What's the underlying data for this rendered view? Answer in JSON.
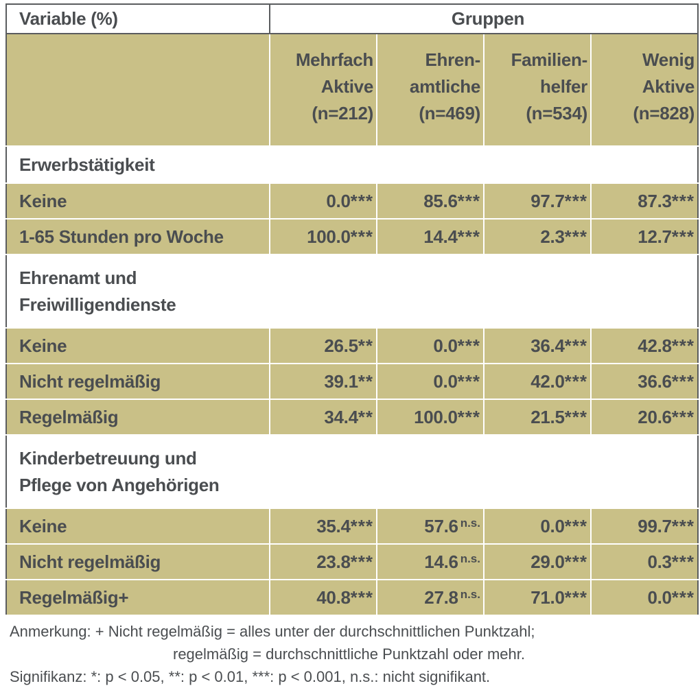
{
  "table": {
    "variable_header": "Variable (%)",
    "groups_header": "Gruppen",
    "columns": [
      {
        "line1": "Mehrfach",
        "line2": "Aktive",
        "n": "(n=212)"
      },
      {
        "line1": "Ehren-",
        "line2": "amtliche",
        "n": "(n=469)"
      },
      {
        "line1": "Familien-",
        "line2": "helfer",
        "n": "(n=534)"
      },
      {
        "line1": "Wenig",
        "line2": "Aktive",
        "n": "(n=828)"
      }
    ],
    "sections": [
      {
        "title": "Erwerbstätigkeit",
        "rows": [
          {
            "label": "Keine",
            "cells": [
              {
                "v": "0.0",
                "s": "***"
              },
              {
                "v": "85.6",
                "s": "***"
              },
              {
                "v": "97.7",
                "s": "***"
              },
              {
                "v": "87.3",
                "s": "***"
              }
            ]
          },
          {
            "label": "1-65 Stunden pro Woche",
            "cells": [
              {
                "v": "100.0",
                "s": "***"
              },
              {
                "v": "14.4",
                "s": "***"
              },
              {
                "v": "2.3",
                "s": "***"
              },
              {
                "v": "12.7",
                "s": "***"
              }
            ]
          }
        ]
      },
      {
        "title": "Ehrenamt und Freiwilligendienste",
        "title_line1": "Ehrenamt und",
        "title_line2": "Freiwilligendienste",
        "rows": [
          {
            "label": "Keine",
            "cells": [
              {
                "v": "26.5",
                "s": "**"
              },
              {
                "v": "0.0",
                "s": "***"
              },
              {
                "v": "36.4",
                "s": "***"
              },
              {
                "v": "42.8",
                "s": "***"
              }
            ]
          },
          {
            "label": "Nicht regelmäßig",
            "cells": [
              {
                "v": "39.1",
                "s": "**"
              },
              {
                "v": "0.0",
                "s": "***"
              },
              {
                "v": "42.0",
                "s": "***"
              },
              {
                "v": "36.6",
                "s": "***"
              }
            ]
          },
          {
            "label": "Regelmäßig",
            "cells": [
              {
                "v": "34.4",
                "s": "**"
              },
              {
                "v": "100.0",
                "s": "***"
              },
              {
                "v": "21.5",
                "s": "***"
              },
              {
                "v": "20.6",
                "s": "***"
              }
            ]
          }
        ]
      },
      {
        "title": "Kinderbetreuung und Pflege von Angehörigen",
        "title_line1": "Kinderbetreuung und",
        "title_line2": "Pflege von Angehörigen",
        "rows": [
          {
            "label": "Keine",
            "cells": [
              {
                "v": "35.4",
                "s": "***"
              },
              {
                "v": "57.6",
                "s": "n.s."
              },
              {
                "v": "0.0",
                "s": "***"
              },
              {
                "v": "99.7",
                "s": "***"
              }
            ]
          },
          {
            "label": "Nicht regelmäßig",
            "cells": [
              {
                "v": "23.8",
                "s": "***"
              },
              {
                "v": "14.6",
                "s": "n.s."
              },
              {
                "v": "29.0",
                "s": "***"
              },
              {
                "v": "0.3",
                "s": "***"
              }
            ]
          },
          {
            "label": "Regelmäßig+",
            "cells": [
              {
                "v": "40.8",
                "s": "***"
              },
              {
                "v": "27.8",
                "s": "n.s."
              },
              {
                "v": "71.0",
                "s": "***"
              },
              {
                "v": "0.0",
                "s": "***"
              }
            ]
          }
        ]
      }
    ]
  },
  "notes": {
    "line1": "Anmerkung: + Nicht regelmäßig = alles unter der durchschnittlichen Punktzahl;",
    "line2": "regelmäßig = durchschnittliche Punktzahl oder mehr.",
    "line3": "Signifikanz: *: p < 0.05, **: p < 0.01, ***: p < 0.001, n.s.: nicht signifikant."
  },
  "colors": {
    "tan": "#c9c087",
    "text": "#4a4d50",
    "border": "#5a5c5e"
  }
}
